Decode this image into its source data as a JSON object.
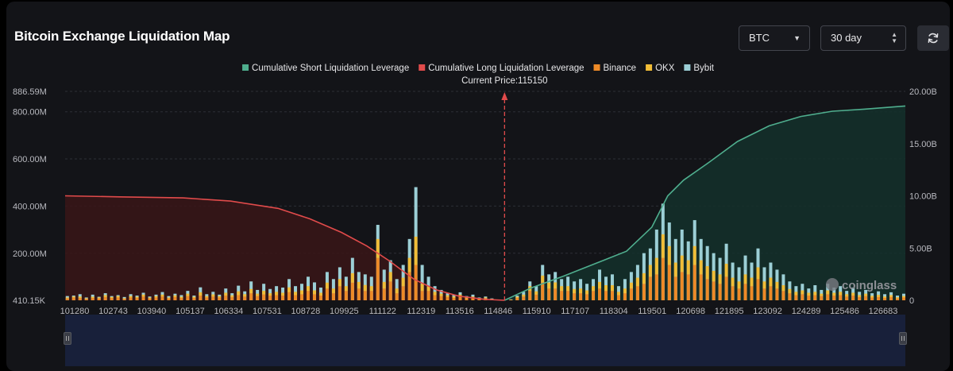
{
  "header": {
    "title": "Bitcoin Exchange Liquidation Map",
    "coin": "BTC",
    "period": "30 day"
  },
  "colors": {
    "short_line": "#4fae8e",
    "long_line": "#e14b4b",
    "binance": "#ee8a27",
    "okx": "#f1bd37",
    "bybit": "#9ccfd6",
    "background": "#131418",
    "zoom_bar": "#18203a"
  },
  "watermark": "coinglass",
  "chart_data": {
    "type": "bar",
    "legend": [
      {
        "name": "Cumulative Short Liquidation Leverage",
        "color": "#4fae8e",
        "kind": "line"
      },
      {
        "name": "Cumulative Long Liquidation Leverage",
        "color": "#e14b4b",
        "kind": "line"
      },
      {
        "name": "Binance",
        "color": "#ee8a27",
        "kind": "bar"
      },
      {
        "name": "OKX",
        "color": "#f1bd37",
        "kind": "bar"
      },
      {
        "name": "Bybit",
        "color": "#9ccfd6",
        "kind": "bar"
      }
    ],
    "current_price_label": "Current Price:115150",
    "current_price": 115150,
    "x_range": [
      101280,
      127800
    ],
    "x_ticks": [
      "101280",
      "102743",
      "103940",
      "105137",
      "106334",
      "107531",
      "108728",
      "109925",
      "111122",
      "112319",
      "113516",
      "114846",
      "115910",
      "117107",
      "118304",
      "119501",
      "120698",
      "121895",
      "123092",
      "124289",
      "125486",
      "126683"
    ],
    "left_axis": {
      "range": [
        0.41015,
        886.59
      ],
      "unit": "M",
      "ticks": [
        "410.15K",
        "200.00M",
        "400.00M",
        "600.00M",
        "800.00M",
        "886.59M"
      ],
      "tick_values": [
        0.41015,
        200,
        400,
        600,
        800,
        886.59
      ]
    },
    "right_axis": {
      "range": [
        0,
        20
      ],
      "unit": "B",
      "ticks": [
        "0",
        "5.00B",
        "10.00B",
        "15.00B",
        "20.00B"
      ],
      "tick_values": [
        0,
        5,
        10,
        15,
        20
      ]
    },
    "long_cumulative_B": [
      [
        101280,
        10.0
      ],
      [
        103000,
        9.9
      ],
      [
        105000,
        9.8
      ],
      [
        106500,
        9.5
      ],
      [
        108000,
        8.8
      ],
      [
        109000,
        7.8
      ],
      [
        110000,
        6.5
      ],
      [
        110800,
        5.2
      ],
      [
        111500,
        3.8
      ],
      [
        112300,
        2.0
      ],
      [
        113000,
        1.0
      ],
      [
        113700,
        0.4
      ],
      [
        114500,
        0.1
      ],
      [
        115150,
        0
      ]
    ],
    "short_cumulative_B": [
      [
        115150,
        0
      ],
      [
        116000,
        1.2
      ],
      [
        117000,
        2.3
      ],
      [
        118000,
        3.5
      ],
      [
        119000,
        4.7
      ],
      [
        119800,
        7.0
      ],
      [
        120300,
        10.0
      ],
      [
        120800,
        11.5
      ],
      [
        121600,
        13.2
      ],
      [
        122500,
        15.2
      ],
      [
        123500,
        16.7
      ],
      [
        124500,
        17.6
      ],
      [
        125500,
        18.1
      ],
      [
        126500,
        18.3
      ],
      [
        127800,
        18.6
      ]
    ],
    "bars_M": [
      [
        101350,
        18,
        4,
        8
      ],
      [
        101550,
        20,
        4,
        12
      ],
      [
        101750,
        26,
        6,
        10
      ],
      [
        101950,
        12,
        3,
        6
      ],
      [
        102150,
        24,
        5,
        10
      ],
      [
        102350,
        15,
        4,
        8
      ],
      [
        102550,
        30,
        8,
        14
      ],
      [
        102750,
        18,
        4,
        10
      ],
      [
        102950,
        22,
        6,
        12
      ],
      [
        103150,
        14,
        3,
        6
      ],
      [
        103350,
        26,
        6,
        12
      ],
      [
        103550,
        20,
        5,
        10
      ],
      [
        103750,
        32,
        8,
        16
      ],
      [
        103950,
        16,
        4,
        8
      ],
      [
        104150,
        24,
        6,
        12
      ],
      [
        104350,
        35,
        8,
        16
      ],
      [
        104550,
        18,
        4,
        8
      ],
      [
        104750,
        28,
        7,
        14
      ],
      [
        104950,
        22,
        5,
        10
      ],
      [
        105150,
        40,
        10,
        18
      ],
      [
        105350,
        20,
        5,
        10
      ],
      [
        105550,
        55,
        14,
        20
      ],
      [
        105750,
        26,
        6,
        12
      ],
      [
        105950,
        36,
        9,
        16
      ],
      [
        106150,
        24,
        6,
        12
      ],
      [
        106350,
        50,
        12,
        20
      ],
      [
        106550,
        30,
        7,
        14
      ],
      [
        106750,
        62,
        16,
        22
      ],
      [
        106950,
        38,
        10,
        16
      ],
      [
        107150,
        80,
        18,
        30
      ],
      [
        107350,
        44,
        10,
        18
      ],
      [
        107550,
        70,
        15,
        25
      ],
      [
        107750,
        48,
        10,
        20
      ],
      [
        107950,
        60,
        14,
        22
      ],
      [
        108150,
        54,
        12,
        20
      ],
      [
        108350,
        90,
        20,
        35
      ],
      [
        108550,
        60,
        14,
        22
      ],
      [
        108750,
        70,
        16,
        26
      ],
      [
        108950,
        100,
        20,
        40
      ],
      [
        109150,
        76,
        16,
        26
      ],
      [
        109350,
        54,
        12,
        20
      ],
      [
        109550,
        120,
        25,
        50
      ],
      [
        109750,
        90,
        20,
        30
      ],
      [
        109950,
        140,
        30,
        60
      ],
      [
        110150,
        100,
        20,
        40
      ],
      [
        110350,
        180,
        40,
        75
      ],
      [
        110550,
        120,
        28,
        50
      ],
      [
        110750,
        110,
        25,
        40
      ],
      [
        110950,
        100,
        20,
        40
      ],
      [
        111150,
        320,
        80,
        180
      ],
      [
        111350,
        130,
        28,
        50
      ],
      [
        111550,
        170,
        40,
        80
      ],
      [
        111750,
        90,
        20,
        30
      ],
      [
        111950,
        150,
        36,
        60
      ],
      [
        112150,
        260,
        60,
        120
      ],
      [
        112350,
        480,
        120,
        150
      ],
      [
        112550,
        150,
        30,
        40
      ],
      [
        112750,
        100,
        20,
        40
      ],
      [
        112950,
        60,
        14,
        22
      ],
      [
        113150,
        44,
        10,
        18
      ],
      [
        113350,
        30,
        7,
        14
      ],
      [
        113550,
        24,
        6,
        10
      ],
      [
        113750,
        34,
        8,
        16
      ],
      [
        113950,
        18,
        4,
        8
      ],
      [
        114150,
        24,
        6,
        10
      ],
      [
        114350,
        12,
        3,
        6
      ],
      [
        114550,
        16,
        4,
        8
      ],
      [
        114750,
        8,
        2,
        4
      ],
      [
        114950,
        2,
        1,
        1
      ],
      [
        115350,
        4,
        1,
        2
      ],
      [
        115550,
        20,
        5,
        10
      ],
      [
        115750,
        36,
        8,
        16
      ],
      [
        115950,
        80,
        20,
        40
      ],
      [
        116150,
        60,
        14,
        24
      ],
      [
        116350,
        150,
        30,
        75
      ],
      [
        116550,
        110,
        25,
        50
      ],
      [
        116750,
        120,
        26,
        50
      ],
      [
        116950,
        90,
        20,
        40
      ],
      [
        117150,
        100,
        20,
        40
      ],
      [
        117350,
        80,
        18,
        30
      ],
      [
        117550,
        90,
        20,
        30
      ],
      [
        117750,
        70,
        16,
        26
      ],
      [
        117950,
        90,
        20,
        40
      ],
      [
        118150,
        130,
        28,
        50
      ],
      [
        118350,
        100,
        24,
        40
      ],
      [
        118550,
        110,
        24,
        40
      ],
      [
        118750,
        60,
        14,
        22
      ],
      [
        118950,
        90,
        20,
        30
      ],
      [
        119150,
        120,
        25,
        50
      ],
      [
        119350,
        150,
        36,
        60
      ],
      [
        119550,
        200,
        45,
        70
      ],
      [
        119750,
        220,
        50,
        100
      ],
      [
        119950,
        300,
        70,
        110
      ],
      [
        120150,
        410,
        100,
        180
      ],
      [
        120350,
        330,
        80,
        150
      ],
      [
        120550,
        260,
        60,
        100
      ],
      [
        120750,
        300,
        70,
        120
      ],
      [
        120950,
        250,
        60,
        110
      ],
      [
        121150,
        340,
        80,
        150
      ],
      [
        121350,
        260,
        60,
        110
      ],
      [
        121550,
        230,
        55,
        90
      ],
      [
        121750,
        200,
        45,
        80
      ],
      [
        121950,
        180,
        40,
        70
      ],
      [
        122150,
        240,
        55,
        100
      ],
      [
        122350,
        160,
        36,
        60
      ],
      [
        122550,
        140,
        30,
        50
      ],
      [
        122750,
        190,
        40,
        70
      ],
      [
        122950,
        160,
        36,
        60
      ],
      [
        123150,
        220,
        50,
        90
      ],
      [
        123350,
        140,
        30,
        50
      ],
      [
        123550,
        160,
        36,
        60
      ],
      [
        123750,
        130,
        28,
        50
      ],
      [
        123950,
        110,
        24,
        40
      ],
      [
        124150,
        80,
        18,
        30
      ],
      [
        124350,
        60,
        14,
        22
      ],
      [
        124550,
        70,
        16,
        26
      ],
      [
        124750,
        50,
        12,
        20
      ],
      [
        124950,
        64,
        14,
        22
      ],
      [
        125150,
        44,
        10,
        18
      ],
      [
        125350,
        70,
        16,
        26
      ],
      [
        125550,
        54,
        12,
        20
      ],
      [
        125750,
        60,
        14,
        22
      ],
      [
        125950,
        40,
        10,
        16
      ],
      [
        126150,
        54,
        12,
        20
      ],
      [
        126350,
        36,
        8,
        14
      ],
      [
        126550,
        44,
        10,
        18
      ],
      [
        126750,
        30,
        7,
        12
      ],
      [
        126950,
        38,
        9,
        14
      ],
      [
        127150,
        26,
        6,
        10
      ],
      [
        127350,
        34,
        8,
        14
      ],
      [
        127550,
        20,
        5,
        8
      ],
      [
        127750,
        28,
        6,
        12
      ]
    ]
  }
}
